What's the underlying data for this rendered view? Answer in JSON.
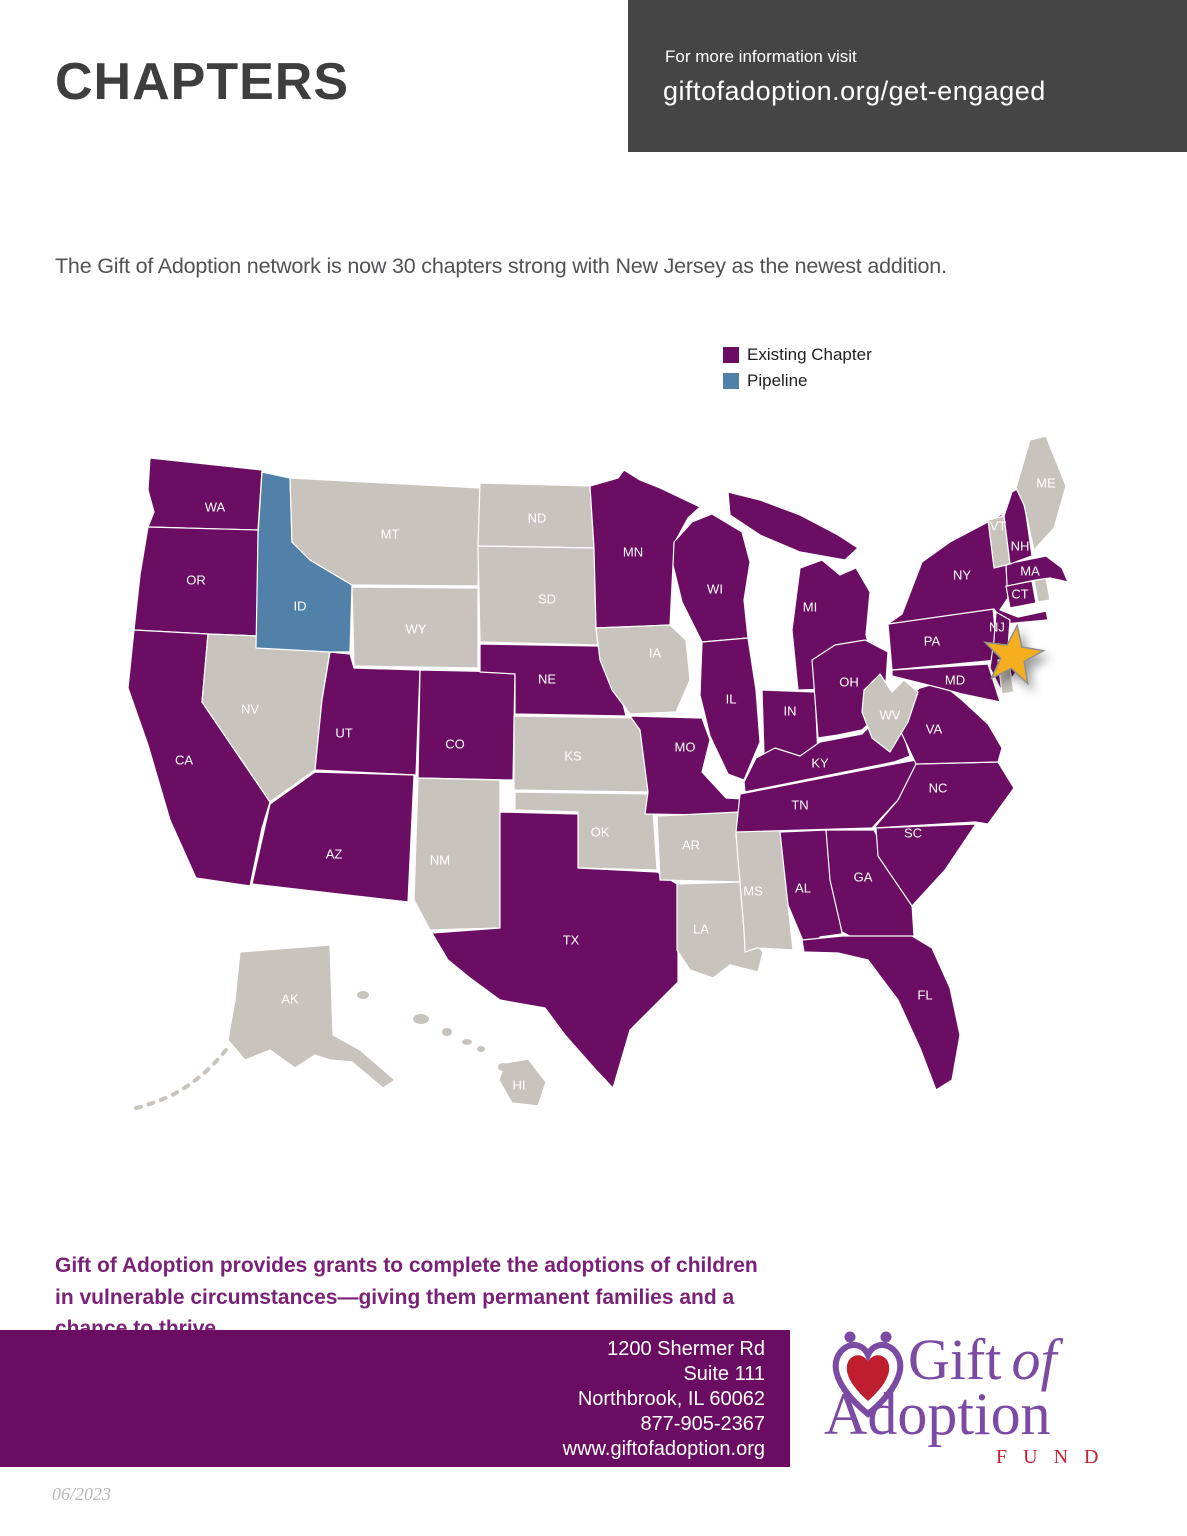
{
  "header": {
    "title": "CHAPTERS",
    "info_label": "For more information visit",
    "info_url": "giftofadoption.org/get-engaged"
  },
  "intro": "The Gift of Adoption network is now 30 chapters strong with New Jersey as the newest addition.",
  "legend": {
    "existing_label": "Existing Chapter",
    "pipeline_label": "Pipeline"
  },
  "colors": {
    "existing": "#6B0E63",
    "pipeline": "#5181A9",
    "none": "#C9C3BD",
    "star": "#F5AE1D",
    "star_stroke": "#8F8F8F",
    "header_box": "#454545",
    "footer_bar": "#6A0C62",
    "accent_text": "#7A2178",
    "logo_purple": "#7B4AA2",
    "logo_red": "#C4202F"
  },
  "map": {
    "star_marker_state": "NJ",
    "states": [
      {
        "abbr": "WA",
        "status": "existing",
        "labeled": true
      },
      {
        "abbr": "OR",
        "status": "existing",
        "labeled": true
      },
      {
        "abbr": "CA",
        "status": "existing",
        "labeled": true
      },
      {
        "abbr": "NV",
        "status": "none",
        "labeled": true
      },
      {
        "abbr": "ID",
        "status": "pipeline",
        "labeled": true
      },
      {
        "abbr": "MT",
        "status": "none",
        "labeled": true
      },
      {
        "abbr": "WY",
        "status": "none",
        "labeled": true
      },
      {
        "abbr": "UT",
        "status": "existing",
        "labeled": true
      },
      {
        "abbr": "CO",
        "status": "existing",
        "labeled": true
      },
      {
        "abbr": "AZ",
        "status": "existing",
        "labeled": true
      },
      {
        "abbr": "NM",
        "status": "none",
        "labeled": true
      },
      {
        "abbr": "ND",
        "status": "none",
        "labeled": true
      },
      {
        "abbr": "SD",
        "status": "none",
        "labeled": true
      },
      {
        "abbr": "NE",
        "status": "existing",
        "labeled": true
      },
      {
        "abbr": "KS",
        "status": "none",
        "labeled": true
      },
      {
        "abbr": "OK",
        "status": "none",
        "labeled": true
      },
      {
        "abbr": "TX",
        "status": "existing",
        "labeled": true
      },
      {
        "abbr": "MN",
        "status": "existing",
        "labeled": true
      },
      {
        "abbr": "IA",
        "status": "none",
        "labeled": true
      },
      {
        "abbr": "MO",
        "status": "existing",
        "labeled": true
      },
      {
        "abbr": "AR",
        "status": "none",
        "labeled": true
      },
      {
        "abbr": "LA",
        "status": "none",
        "labeled": true
      },
      {
        "abbr": "MS",
        "status": "none",
        "labeled": true
      },
      {
        "abbr": "WI",
        "status": "existing",
        "labeled": true
      },
      {
        "abbr": "IL",
        "status": "existing",
        "labeled": true
      },
      {
        "abbr": "MI",
        "status": "existing",
        "labeled": true
      },
      {
        "abbr": "IN",
        "status": "existing",
        "labeled": true
      },
      {
        "abbr": "OH",
        "status": "existing",
        "labeled": true
      },
      {
        "abbr": "KY",
        "status": "existing",
        "labeled": true
      },
      {
        "abbr": "TN",
        "status": "existing",
        "labeled": true
      },
      {
        "abbr": "AL",
        "status": "existing",
        "labeled": true
      },
      {
        "abbr": "GA",
        "status": "existing",
        "labeled": true
      },
      {
        "abbr": "FL",
        "status": "existing",
        "labeled": true
      },
      {
        "abbr": "SC",
        "status": "existing",
        "labeled": true
      },
      {
        "abbr": "NC",
        "status": "existing",
        "labeled": true
      },
      {
        "abbr": "VA",
        "status": "existing",
        "labeled": true
      },
      {
        "abbr": "WV",
        "status": "none",
        "labeled": true
      },
      {
        "abbr": "PA",
        "status": "existing",
        "labeled": true
      },
      {
        "abbr": "NY",
        "status": "existing",
        "labeled": true
      },
      {
        "abbr": "NJ",
        "status": "existing",
        "labeled": true
      },
      {
        "abbr": "MD",
        "status": "existing",
        "labeled": true
      },
      {
        "abbr": "DE",
        "status": "none",
        "labeled": false
      },
      {
        "abbr": "CT",
        "status": "existing",
        "labeled": true
      },
      {
        "abbr": "RI",
        "status": "none",
        "labeled": false
      },
      {
        "abbr": "MA",
        "status": "existing",
        "labeled": true
      },
      {
        "abbr": "VT",
        "status": "none",
        "labeled": true
      },
      {
        "abbr": "NH",
        "status": "existing",
        "labeled": true
      },
      {
        "abbr": "ME",
        "status": "none",
        "labeled": true
      },
      {
        "abbr": "AK",
        "status": "none",
        "labeled": true
      },
      {
        "abbr": "HI",
        "status": "none",
        "labeled": true
      }
    ]
  },
  "footnote": "Gift of Adoption provides grants to complete the adoptions of children in vulnerable circumstances—giving them permanent families and a chance to thrive.",
  "footer": {
    "address_lines": [
      "1200 Shermer Rd",
      "Suite 111",
      "Northbrook, IL 60062",
      "877-905-2367",
      "www.giftofadoption.org"
    ],
    "logo": {
      "gift": "Gift",
      "of": "of",
      "adoption": "Adoption",
      "fund": "FUND"
    },
    "date": "06/2023"
  }
}
